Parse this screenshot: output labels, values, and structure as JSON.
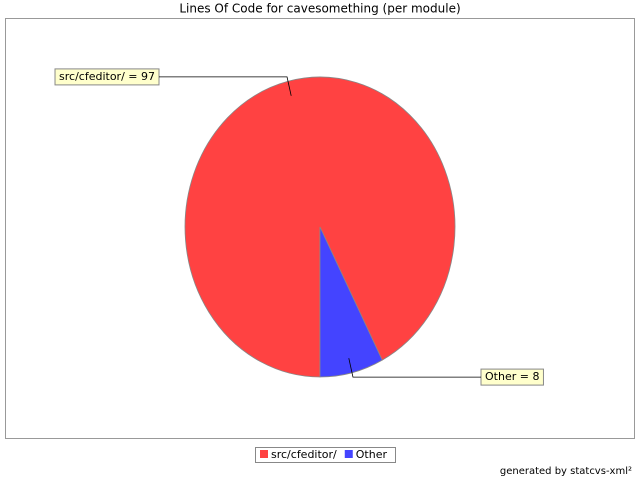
{
  "chart_data": {
    "type": "pie",
    "title": "Lines Of Code for cavesomething (per module)",
    "categories": [
      "src/cfeditor/",
      "Other"
    ],
    "values": [
      97,
      8
    ],
    "value_labels": [
      "src/cfeditor/ = 97",
      "Other = 8"
    ],
    "colors": [
      "#ff4242",
      "#4444ff"
    ],
    "footer": "generated by statcvs-xml²"
  }
}
